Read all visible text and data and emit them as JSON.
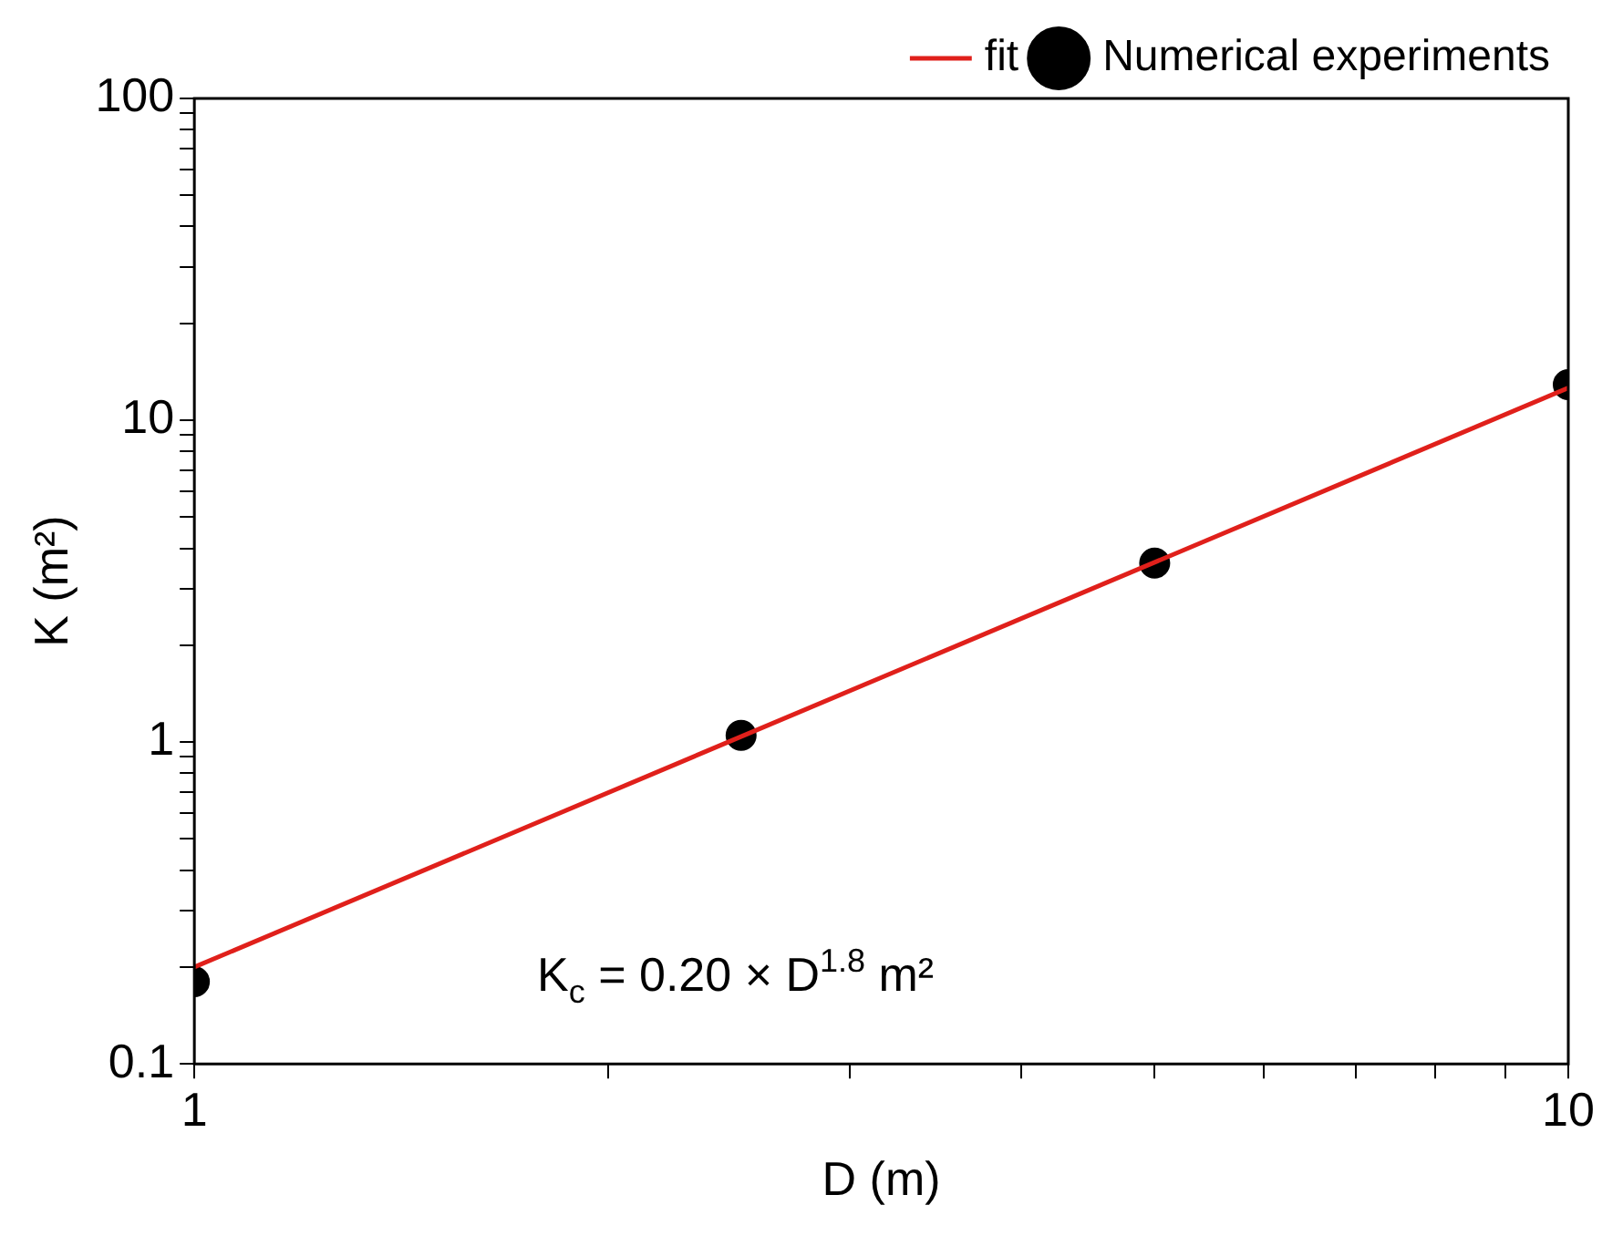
{
  "chart_data": {
    "type": "scatter",
    "xlabel": "D (m)",
    "ylabel": "K (m²)",
    "log": "xy",
    "xlim": [
      1,
      10
    ],
    "ylim": [
      0.1,
      100
    ],
    "xticks": [
      1,
      {
        "value": 2,
        "label": null
      },
      {
        "value": 3,
        "label": null
      },
      {
        "value": 4,
        "label": null
      },
      {
        "value": 5,
        "label": null
      },
      {
        "value": 6,
        "label": null
      },
      {
        "value": 7,
        "label": null
      },
      {
        "value": 8,
        "label": null
      },
      {
        "value": 9,
        "label": null
      },
      10
    ],
    "yticks": [
      0.1,
      {
        "value": 0.2,
        "label": null
      },
      {
        "value": 0.3,
        "label": null
      },
      {
        "value": 0.4,
        "label": null
      },
      {
        "value": 0.5,
        "label": null
      },
      {
        "value": 0.6,
        "label": null
      },
      {
        "value": 0.7,
        "label": null
      },
      {
        "value": 0.8,
        "label": null
      },
      {
        "value": 0.9,
        "label": null
      },
      1,
      {
        "value": 2,
        "label": null
      },
      {
        "value": 3,
        "label": null
      },
      {
        "value": 4,
        "label": null
      },
      {
        "value": 5,
        "label": null
      },
      {
        "value": 6,
        "label": null
      },
      {
        "value": 7,
        "label": null
      },
      {
        "value": 8,
        "label": null
      },
      {
        "value": 9,
        "label": null
      },
      10,
      {
        "value": 20,
        "label": null
      },
      {
        "value": 30,
        "label": null
      },
      {
        "value": 40,
        "label": null
      },
      {
        "value": 50,
        "label": null
      },
      {
        "value": 60,
        "label": null
      },
      {
        "value": 70,
        "label": null
      },
      {
        "value": 80,
        "label": null
      },
      {
        "value": 90,
        "label": null
      },
      100
    ],
    "grid": false,
    "legend": "top right",
    "marker": "circle",
    "annotations": [
      "K$_{c}$ = 0.20 × D$^{1.8}$ m²"
    ],
    "series": [
      {
        "name": "Numerical experiments",
        "color": "#000000",
        "x": [
          1,
          2.5,
          5,
          10
        ],
        "values": [
          0.18,
          1.05,
          3.6,
          12.9
        ]
      },
      {
        "name": "fit",
        "type": "line",
        "color": "#e0201b",
        "marker": "none",
        "x": [
          1,
          10
        ],
        "values": [
          0.2,
          12.6
        ]
      }
    ]
  }
}
